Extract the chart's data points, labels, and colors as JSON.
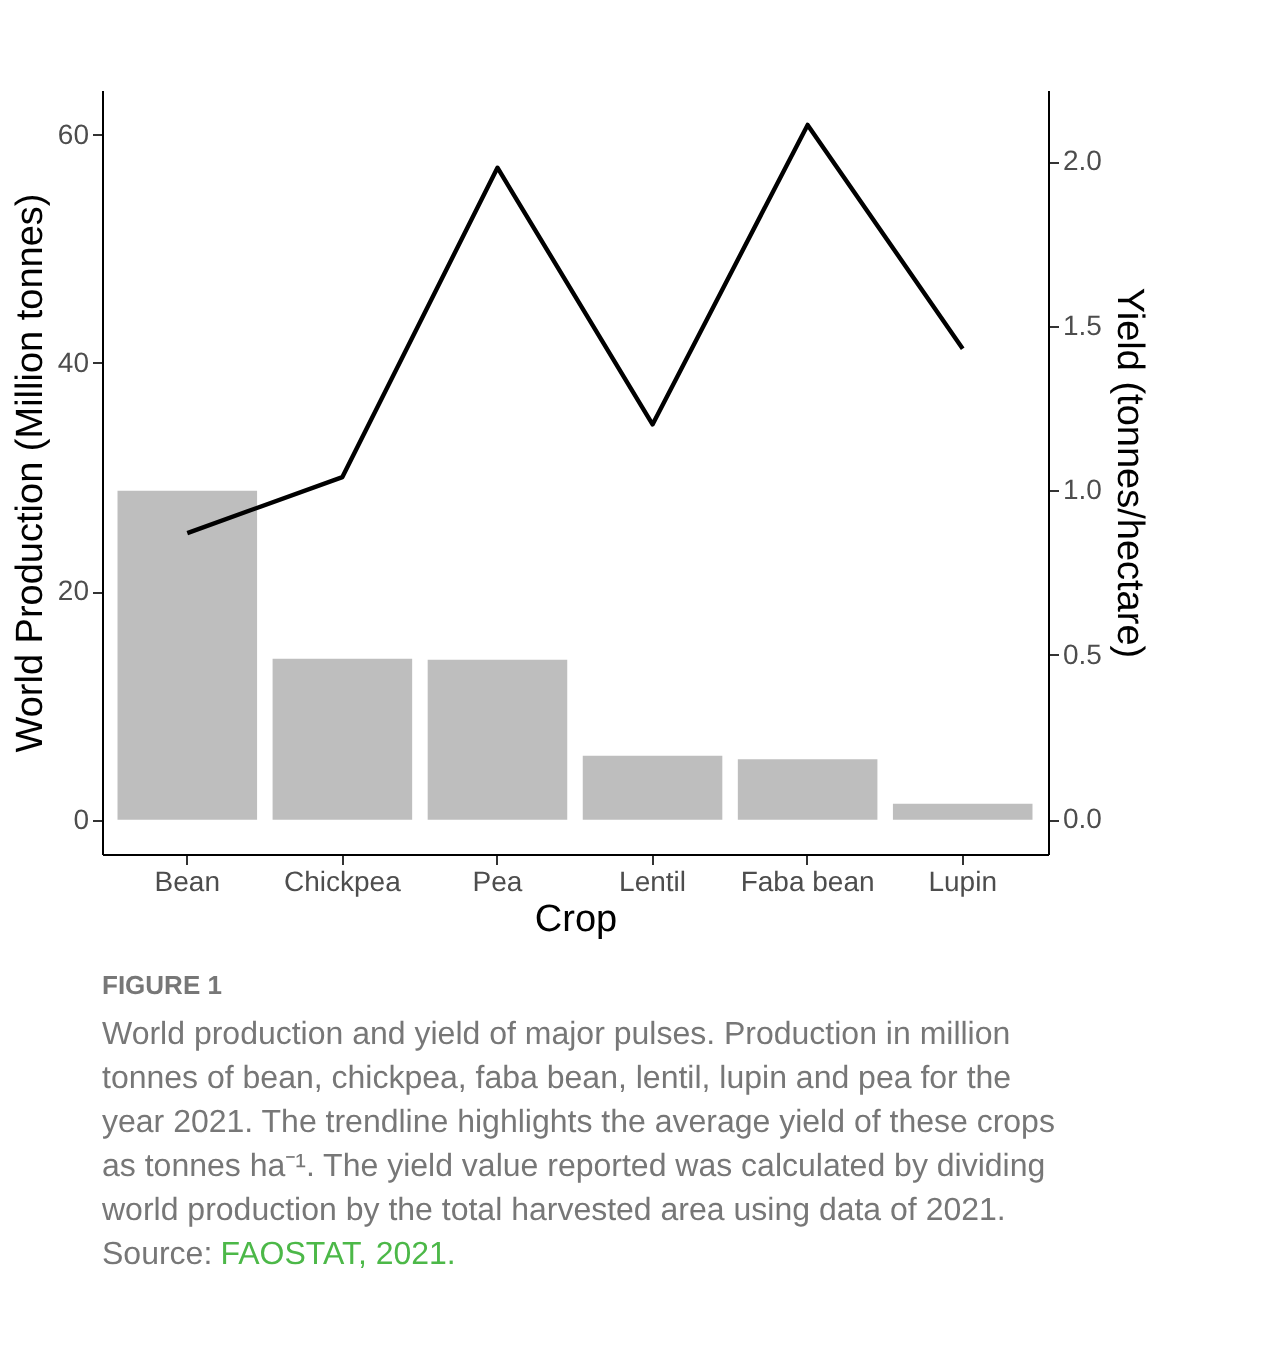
{
  "chart_data": {
    "type": "bar",
    "xlabel": "Crop",
    "ylabel": "World Production (Million tonnes)",
    "y2label": "Yield (tonnes/hectare)",
    "categories": [
      "Bean",
      "Chickpea",
      "Pea",
      "Lentil",
      "Faba bean",
      "Lupin"
    ],
    "series": [
      {
        "color": "#bebebe",
        "values": [
          28.8,
          14.1,
          14.0,
          5.6,
          5.3,
          1.4
        ]
      },
      {
        "type": "line",
        "axis": "y2",
        "color": "#000000",
        "values": [
          0.87,
          1.04,
          1.98,
          1.2,
          2.11,
          1.43
        ]
      }
    ],
    "ylim": [
      -3.0,
      63.9
    ],
    "yticks": [
      0,
      20,
      40,
      60
    ],
    "y2lim": [
      -0.105,
      2.216
    ],
    "y2ticks": [
      {
        "value": 0,
        "label": "0.0"
      },
      {
        "value": 0.5,
        "label": "0.5"
      },
      {
        "value": 1,
        "label": "1.0"
      },
      {
        "value": 1.5,
        "label": "1.5"
      },
      {
        "value": 2,
        "label": "2.0"
      }
    ],
    "grid": false,
    "annotations": [
      "FIGURE 1",
      "World production and yield of major pulses. Production in million tonnes of bean, chickpea, faba bean, lentil, lupin and pea for the year 2021. The trendline highlights the average yield of these crops as tonnes ha⁻¹. The yield value reported was calculated by dividing world production by the total harvested area using data of 2021.",
      "Source: FAOSTAT, 2021."
    ]
  }
}
